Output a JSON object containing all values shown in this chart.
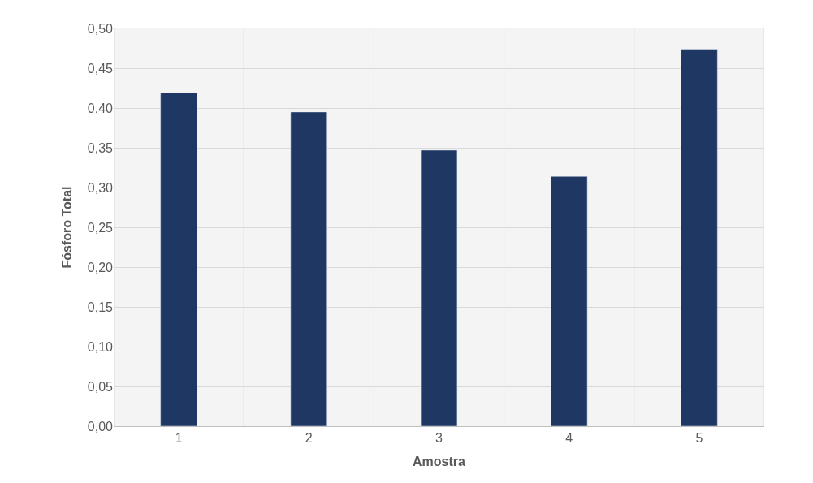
{
  "chart_data": {
    "type": "bar",
    "xlabel": "Amostra",
    "ylabel": "Fósforo Total",
    "categories": [
      "1",
      "2",
      "3",
      "4",
      "5"
    ],
    "values": [
      0.419,
      0.395,
      0.347,
      0.314,
      0.474
    ],
    "color": "#1f3763",
    "ylim": [
      0,
      0.5
    ],
    "yticks": [
      {
        "value": 0,
        "label": "0,00"
      },
      {
        "value": 0.05,
        "label": "0,05"
      },
      {
        "value": 0.1,
        "label": "0,10"
      },
      {
        "value": 0.15,
        "label": "0,15"
      },
      {
        "value": 0.2,
        "label": "0,20"
      },
      {
        "value": 0.25,
        "label": "0,25"
      },
      {
        "value": 0.3,
        "label": "0,30"
      },
      {
        "value": 0.35,
        "label": "0,35"
      },
      {
        "value": 0.4,
        "label": "0,40"
      },
      {
        "value": 0.45,
        "label": "0,45"
      },
      {
        "value": 0.5,
        "label": "0,50"
      }
    ],
    "grid": true
  }
}
